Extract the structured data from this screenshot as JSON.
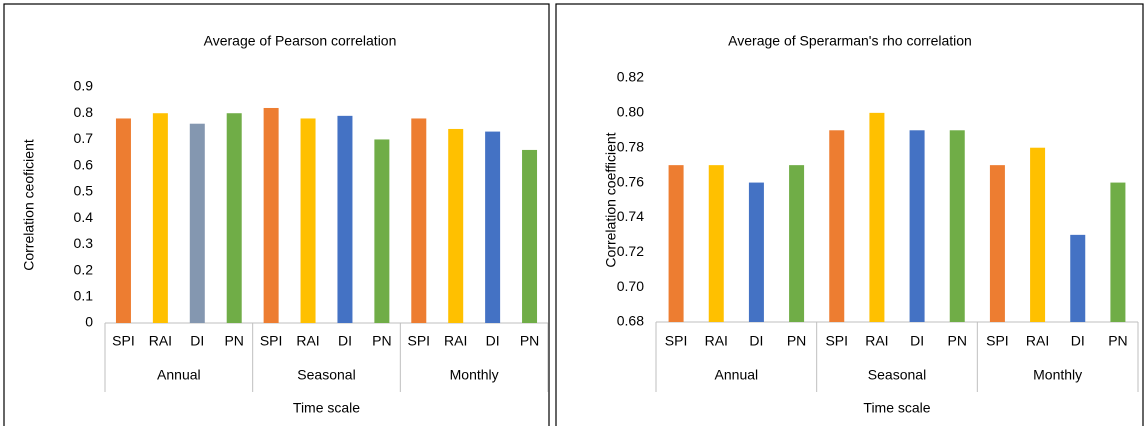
{
  "chart_data": [
    {
      "type": "bar",
      "title": "Average of Pearson correlation",
      "x_label": "Time scale",
      "y_label": "Correlation ceoficient",
      "groups": [
        "Annual",
        "Seasonal",
        "Monthly"
      ],
      "categories": [
        "SPI",
        "RAI",
        "DI",
        "PN",
        "SPI",
        "RAI",
        "DI",
        "PN",
        "SPI",
        "RAI",
        "DI",
        "PN"
      ],
      "values": [
        0.78,
        0.8,
        0.76,
        0.8,
        0.82,
        0.78,
        0.79,
        0.7,
        0.78,
        0.74,
        0.73,
        0.66
      ],
      "colors": [
        "#ed7d31",
        "#ffc000",
        "#8497b0",
        "#70ad47",
        "#ed7d31",
        "#ffc000",
        "#4472c4",
        "#70ad47",
        "#ed7d31",
        "#ffc000",
        "#4472c4",
        "#70ad47"
      ],
      "ylim": [
        0,
        0.9
      ],
      "yticks": [
        0,
        0.1,
        0.2,
        0.3,
        0.4,
        0.5,
        0.6,
        0.7,
        0.8,
        0.9
      ],
      "grid": false
    },
    {
      "type": "bar",
      "title": "Average of Sperarman's rho correlation",
      "x_label": "Time scale",
      "y_label": "Correlation coefficient",
      "groups": [
        "Annual",
        "Seasonal",
        "Monthly"
      ],
      "categories": [
        "SPI",
        "RAI",
        "DI",
        "PN",
        "SPI",
        "RAI",
        "DI",
        "PN",
        "SPI",
        "RAI",
        "DI",
        "PN"
      ],
      "values": [
        0.77,
        0.77,
        0.76,
        0.77,
        0.79,
        0.8,
        0.79,
        0.79,
        0.77,
        0.78,
        0.73,
        0.76
      ],
      "colors": [
        "#ed7d31",
        "#ffc000",
        "#4472c4",
        "#70ad47",
        "#ed7d31",
        "#ffc000",
        "#4472c4",
        "#70ad47",
        "#ed7d31",
        "#ffc000",
        "#4472c4",
        "#70ad47"
      ],
      "ylim": [
        0.68,
        0.82
      ],
      "yticks": [
        0.68,
        {
          "value": 0.7,
          "label": "0.70"
        },
        0.72,
        0.74,
        0.76,
        0.78,
        {
          "value": 0.8,
          "label": "0.80"
        },
        0.82
      ],
      "grid": false
    }
  ]
}
